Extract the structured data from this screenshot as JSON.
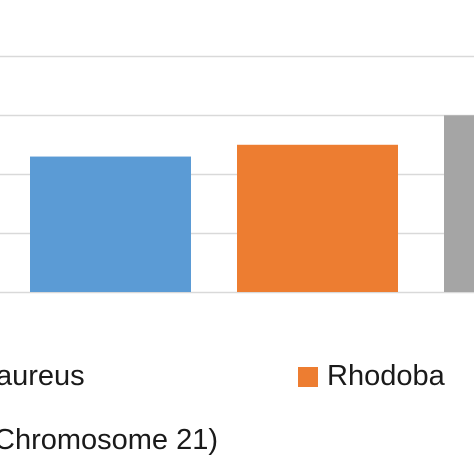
{
  "chart_data": {
    "type": "bar",
    "title": "",
    "xlabel": "",
    "ylabel": "",
    "grid": true,
    "legend_position": "bottom",
    "series": [
      {
        "name": "aureus",
        "color": "#5B9BD5",
        "value": 2.3
      },
      {
        "name": "Rhodoba",
        "color": "#ED7D31",
        "value": 2.5
      },
      {
        "name": "",
        "color": "#A5A5A5",
        "value": 3.0
      }
    ],
    "gridlines": [
      1,
      2,
      3,
      4
    ],
    "ylim": [
      0,
      4.5
    ]
  },
  "legend": {
    "items": [
      {
        "label": "aureus",
        "color": "#5B9BD5",
        "show_swatch": false
      },
      {
        "label": "Rhodoba",
        "color": "#ED7D31",
        "show_swatch": true
      }
    ]
  },
  "caption": "Chromosome 21)"
}
